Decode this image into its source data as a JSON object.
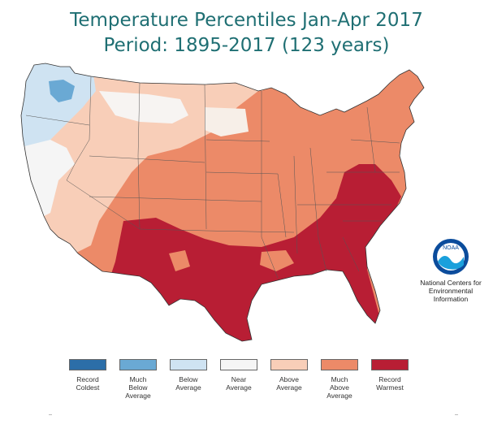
{
  "title_line1": "Temperature Percentiles Jan-Apr 2017",
  "title_line2": "Period: 1895-2017 (123 years)",
  "noaa": {
    "logo_text": "NOAA",
    "line1": "National Centers for",
    "line2": "Environmental",
    "line3": "Information"
  },
  "legend": [
    {
      "label": "Record\nColdest",
      "color": "#2c6ea8"
    },
    {
      "label": "Much\nBelow\nAverage",
      "color": "#6aa9d4"
    },
    {
      "label": "Below\nAverage",
      "color": "#cfe3f2"
    },
    {
      "label": "Near\nAverage",
      "color": "#f5f5f5"
    },
    {
      "label": "Above\nAverage",
      "color": "#f8ceb8"
    },
    {
      "label": "Much\nAbove\nAverage",
      "color": "#ec8a68"
    },
    {
      "label": "Record\nWarmest",
      "color": "#b81e34"
    }
  ]
}
